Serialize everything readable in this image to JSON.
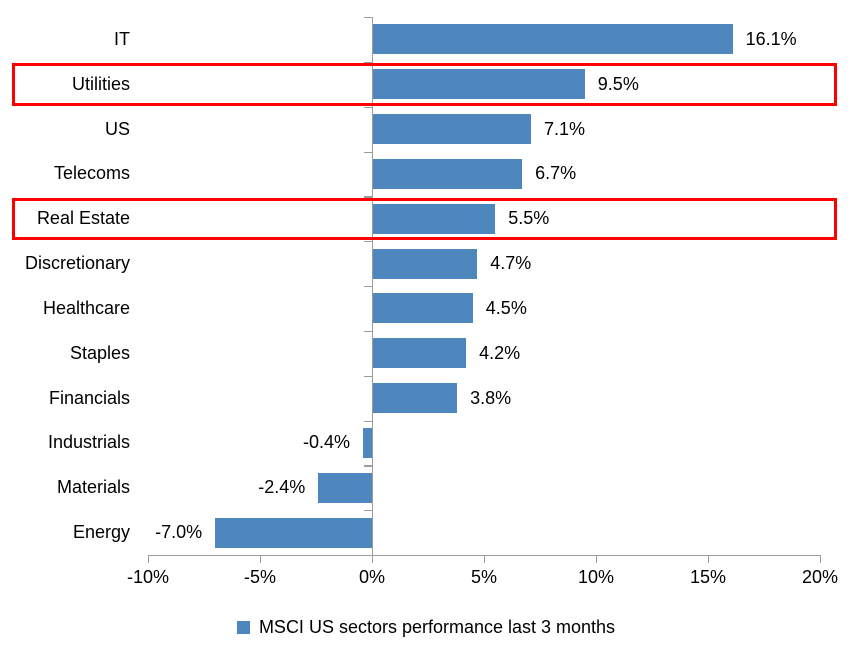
{
  "chart_data": {
    "type": "bar",
    "orientation": "horizontal",
    "title": "",
    "categories": [
      "IT",
      "Utilities",
      "US",
      "Telecoms",
      "Real Estate",
      "Discretionary",
      "Healthcare",
      "Staples",
      "Financials",
      "Industrials",
      "Materials",
      "Energy"
    ],
    "values": [
      16.1,
      9.5,
      7.1,
      6.7,
      5.5,
      4.7,
      4.5,
      4.2,
      3.8,
      -0.4,
      -2.4,
      -7.0
    ],
    "value_labels": [
      "16.1%",
      "9.5%",
      "7.1%",
      "6.7%",
      "5.5%",
      "4.7%",
      "4.5%",
      "4.2%",
      "3.8%",
      "-0.4%",
      "-2.4%",
      "-7.0%"
    ],
    "highlighted_categories": [
      "Utilities",
      "Real Estate"
    ],
    "xlabel": "",
    "ylabel": "",
    "x_axis": {
      "min": -10,
      "max": 20,
      "tick_step": 5,
      "tick_labels": [
        "-10%",
        "-5%",
        "0%",
        "5%",
        "10%",
        "15%",
        "20%"
      ]
    },
    "grid": false,
    "legend": {
      "position": "bottom",
      "label": "MSCI US sectors performance last 3 months"
    },
    "colors": {
      "bar": "#4e86be",
      "highlight_box": "#fe0000",
      "axis": "#9b9b9b",
      "text": "#000000"
    }
  }
}
